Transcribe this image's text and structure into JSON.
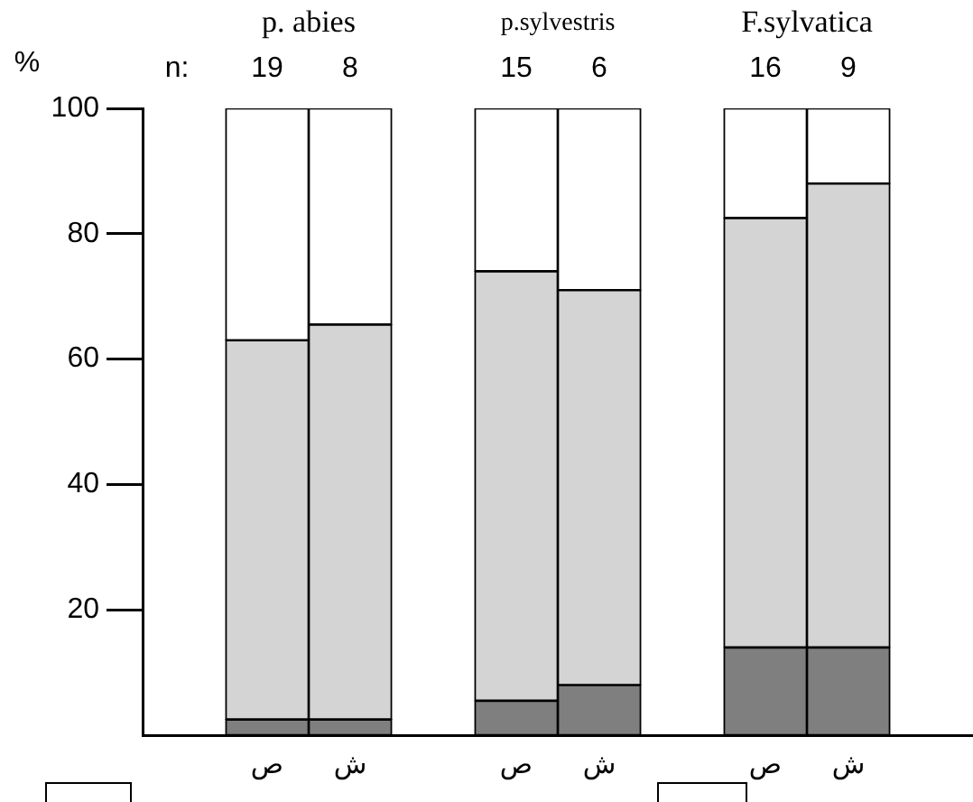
{
  "chart_data": {
    "type": "bar",
    "stacked": true,
    "ylabel": "%",
    "categories": [
      null,
      "ص",
      "ش",
      null,
      "ص",
      "ش",
      null,
      "ص",
      "ش",
      null
    ],
    "series": [
      {
        "color": "#7f7f7f",
        "values": [
          null,
          2.5,
          2.5,
          null,
          5.5,
          8,
          null,
          14,
          14,
          null
        ]
      },
      {
        "color": "#d4d4d4",
        "values": [
          null,
          60.5,
          63,
          null,
          68.5,
          63,
          null,
          68.5,
          74,
          null
        ]
      },
      {
        "color": "#ffffff",
        "values": [
          null,
          37,
          34.5,
          null,
          26,
          29,
          null,
          17.5,
          12,
          null
        ]
      }
    ],
    "ylim": [
      0,
      100
    ],
    "yticks": [
      20,
      40,
      60,
      80,
      100
    ],
    "annotations": [
      "p. abies",
      "p.sylvestris",
      "F.sylvatica",
      "n:",
      "19",
      "8",
      "15",
      "6",
      "16",
      "9"
    ]
  }
}
